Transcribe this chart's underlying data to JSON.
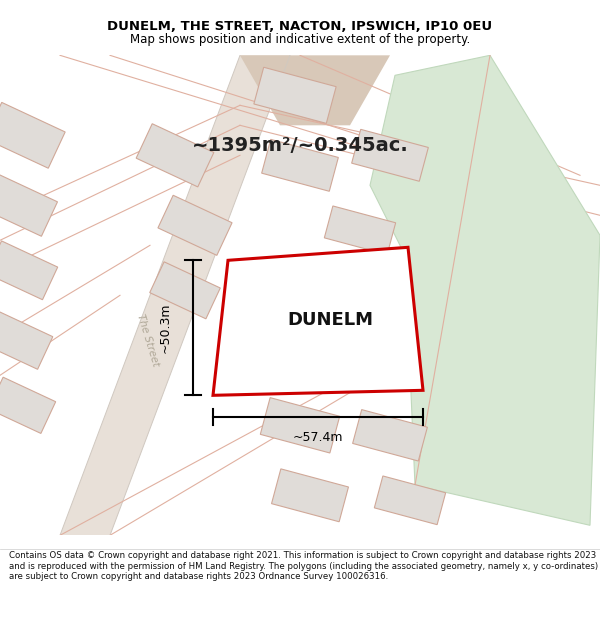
{
  "title_line1": "DUNELM, THE STREET, NACTON, IPSWICH, IP10 0EU",
  "title_line2": "Map shows position and indicative extent of the property.",
  "area_text": "~1395m²/~0.345ac.",
  "label_dunelm": "DUNELM",
  "dim_width": "~57.4m",
  "dim_height": "~50.3m",
  "footer_text": "Contains OS data © Crown copyright and database right 2021. This information is subject to Crown copyright and database rights 2023 and is reproduced with the permission of HM Land Registry. The polygons (including the associated geometry, namely x, y co-ordinates) are subject to Crown copyright and database rights 2023 Ordnance Survey 100026316.",
  "map_bg": "#ffffff",
  "road_fill": "#e8e0d8",
  "road_edge": "#d0c8c0",
  "building_fill": "#e0dcd8",
  "building_edge": "#d0a898",
  "plot_fill": "#ffffff",
  "plot_edge": "#cc0000",
  "green_fill": "#d8e8d4",
  "green_edge": "#c0d8bc",
  "street_label_color": "#b0a898",
  "dim_color": "#000000",
  "area_color": "#222222",
  "dunelm_color": "#111111",
  "white_bg": "#ffffff",
  "title_color": "#000000",
  "footer_color": "#111111",
  "road_line_color": "#e0b0a0"
}
